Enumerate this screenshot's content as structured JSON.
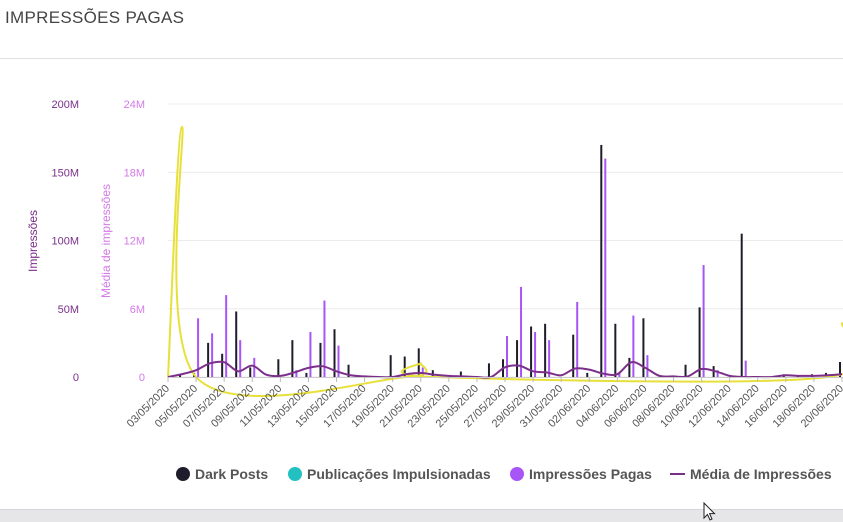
{
  "header": {
    "title": "IMPRESSÕES PAGAS"
  },
  "colors": {
    "dark_posts": "#1f1d2b",
    "publicacoes": "#22c0c0",
    "impressoes": "#a855f7",
    "media": "#7b2f8a",
    "spline": "#e8e03a",
    "axis_left": "#7b2f8a",
    "axis_right": "#d57ae8"
  },
  "chart_data": {
    "type": "bar",
    "ylabel_left": "Impressões",
    "ylabel_right": "Média de impressões",
    "ylim_left": [
      0,
      200000000
    ],
    "ylim_right": [
      0,
      24000000
    ],
    "left_ticks": [
      "0",
      "50M",
      "100M",
      "150M",
      "200M"
    ],
    "right_ticks": [
      "0",
      "6M",
      "12M",
      "18M",
      "24M"
    ],
    "x_tick_labels": [
      "03/05/2020",
      "05/05/2020",
      "07/05/2020",
      "09/05/2020",
      "11/05/2020",
      "13/05/2020",
      "15/05/2020",
      "17/05/2020",
      "19/05/2020",
      "21/05/2020",
      "23/05/2020",
      "25/05/2020",
      "27/05/2020",
      "29/05/2020",
      "31/05/2020",
      "02/06/2020",
      "04/06/2020",
      "06/06/2020",
      "08/06/2020",
      "10/06/2020",
      "12/06/2020",
      "14/06/2020",
      "16/06/2020",
      "18/06/2020",
      "20/06/2020"
    ],
    "x_start": "03/05/2020",
    "x_end": "20/06/2020",
    "series": [
      {
        "name": "Dark Posts",
        "axis": "left",
        "points": [
          {
            "date": "04/05/2020",
            "value": 2000000
          },
          {
            "date": "05/05/2020",
            "value": 3000000
          },
          {
            "date": "06/05/2020",
            "value": 25000000
          },
          {
            "date": "07/05/2020",
            "value": 17000000
          },
          {
            "date": "08/05/2020",
            "value": 48000000
          },
          {
            "date": "09/05/2020",
            "value": 7000000
          },
          {
            "date": "11/05/2020",
            "value": 13000000
          },
          {
            "date": "12/05/2020",
            "value": 27000000
          },
          {
            "date": "13/05/2020",
            "value": 3000000
          },
          {
            "date": "14/05/2020",
            "value": 25000000
          },
          {
            "date": "15/05/2020",
            "value": 35000000
          },
          {
            "date": "16/05/2020",
            "value": 9000000
          },
          {
            "date": "19/05/2020",
            "value": 16000000
          },
          {
            "date": "20/05/2020",
            "value": 15000000
          },
          {
            "date": "21/05/2020",
            "value": 21000000
          },
          {
            "date": "22/05/2020",
            "value": 5000000
          },
          {
            "date": "24/05/2020",
            "value": 4000000
          },
          {
            "date": "26/05/2020",
            "value": 10000000
          },
          {
            "date": "27/05/2020",
            "value": 13000000
          },
          {
            "date": "28/05/2020",
            "value": 27000000
          },
          {
            "date": "29/05/2020",
            "value": 37000000
          },
          {
            "date": "30/05/2020",
            "value": 39000000
          },
          {
            "date": "01/06/2020",
            "value": 31000000
          },
          {
            "date": "02/06/2020",
            "value": 3000000
          },
          {
            "date": "03/06/2020",
            "value": 170000000
          },
          {
            "date": "04/06/2020",
            "value": 39000000
          },
          {
            "date": "05/06/2020",
            "value": 14000000
          },
          {
            "date": "06/06/2020",
            "value": 43000000
          },
          {
            "date": "09/06/2020",
            "value": 9000000
          },
          {
            "date": "10/06/2020",
            "value": 51000000
          },
          {
            "date": "11/06/2020",
            "value": 8000000
          },
          {
            "date": "13/06/2020",
            "value": 105000000
          },
          {
            "date": "16/06/2020",
            "value": 2000000
          },
          {
            "date": "17/06/2020",
            "value": 1000000
          },
          {
            "date": "18/06/2020",
            "value": 2000000
          },
          {
            "date": "19/06/2020",
            "value": 3000000
          },
          {
            "date": "20/06/2020",
            "value": 11000000
          }
        ]
      },
      {
        "name": "Publicações Impulsionadas",
        "axis": "left",
        "points": []
      },
      {
        "name": "Impressões Pagas",
        "axis": "left",
        "points": [
          {
            "date": "05/05/2020",
            "value": 43000000
          },
          {
            "date": "06/05/2020",
            "value": 32000000
          },
          {
            "date": "07/05/2020",
            "value": 60000000
          },
          {
            "date": "08/05/2020",
            "value": 27000000
          },
          {
            "date": "09/05/2020",
            "value": 14000000
          },
          {
            "date": "12/05/2020",
            "value": 5000000
          },
          {
            "date": "13/05/2020",
            "value": 33000000
          },
          {
            "date": "14/05/2020",
            "value": 56000000
          },
          {
            "date": "15/05/2020",
            "value": 23000000
          },
          {
            "date": "20/05/2020",
            "value": 2000000
          },
          {
            "date": "21/05/2020",
            "value": 7000000
          },
          {
            "date": "27/05/2020",
            "value": 30000000
          },
          {
            "date": "28/05/2020",
            "value": 66000000
          },
          {
            "date": "29/05/2020",
            "value": 33000000
          },
          {
            "date": "30/05/2020",
            "value": 27000000
          },
          {
            "date": "01/06/2020",
            "value": 55000000
          },
          {
            "date": "03/06/2020",
            "value": 160000000
          },
          {
            "date": "04/06/2020",
            "value": 3000000
          },
          {
            "date": "05/06/2020",
            "value": 45000000
          },
          {
            "date": "06/06/2020",
            "value": 16000000
          },
          {
            "date": "10/06/2020",
            "value": 82000000
          },
          {
            "date": "11/06/2020",
            "value": 5000000
          },
          {
            "date": "13/06/2020",
            "value": 12000000
          }
        ]
      },
      {
        "name": "Média de Impressões",
        "axis": "right",
        "points": [
          {
            "date": "03/05/2020",
            "value": 0
          },
          {
            "date": "04/05/2020",
            "value": 250000
          },
          {
            "date": "05/05/2020",
            "value": 600000
          },
          {
            "date": "06/05/2020",
            "value": 1200000
          },
          {
            "date": "07/05/2020",
            "value": 1300000
          },
          {
            "date": "08/05/2020",
            "value": 500000
          },
          {
            "date": "09/05/2020",
            "value": 1000000
          },
          {
            "date": "10/05/2020",
            "value": 200000
          },
          {
            "date": "11/05/2020",
            "value": 100000
          },
          {
            "date": "12/05/2020",
            "value": 400000
          },
          {
            "date": "13/05/2020",
            "value": 800000
          },
          {
            "date": "14/05/2020",
            "value": 950000
          },
          {
            "date": "15/05/2020",
            "value": 500000
          },
          {
            "date": "16/05/2020",
            "value": 150000
          },
          {
            "date": "17/05/2020",
            "value": 50000
          },
          {
            "date": "18/05/2020",
            "value": 0
          },
          {
            "date": "19/05/2020",
            "value": 0
          },
          {
            "date": "20/05/2020",
            "value": 250000
          },
          {
            "date": "21/05/2020",
            "value": 350000
          },
          {
            "date": "22/05/2020",
            "value": 200000
          },
          {
            "date": "23/05/2020",
            "value": 100000
          },
          {
            "date": "24/05/2020",
            "value": 50000
          },
          {
            "date": "25/05/2020",
            "value": 0
          },
          {
            "date": "26/05/2020",
            "value": 0
          },
          {
            "date": "27/05/2020",
            "value": 850000
          },
          {
            "date": "28/05/2020",
            "value": 1000000
          },
          {
            "date": "29/05/2020",
            "value": 500000
          },
          {
            "date": "30/05/2020",
            "value": 400000
          },
          {
            "date": "31/05/2020",
            "value": 150000
          },
          {
            "date": "01/06/2020",
            "value": 750000
          },
          {
            "date": "02/06/2020",
            "value": 650000
          },
          {
            "date": "03/06/2020",
            "value": 300000
          },
          {
            "date": "04/06/2020",
            "value": 250000
          },
          {
            "date": "05/06/2020",
            "value": 1300000
          },
          {
            "date": "06/06/2020",
            "value": 800000
          },
          {
            "date": "07/06/2020",
            "value": 100000
          },
          {
            "date": "08/06/2020",
            "value": 50000
          },
          {
            "date": "09/06/2020",
            "value": 50000
          },
          {
            "date": "10/06/2020",
            "value": 700000
          },
          {
            "date": "11/06/2020",
            "value": 500000
          },
          {
            "date": "12/06/2020",
            "value": 100000
          },
          {
            "date": "13/06/2020",
            "value": 0
          },
          {
            "date": "14/06/2020",
            "value": 0
          },
          {
            "date": "15/06/2020",
            "value": 0
          },
          {
            "date": "16/06/2020",
            "value": 150000
          },
          {
            "date": "17/06/2020",
            "value": 100000
          },
          {
            "date": "18/06/2020",
            "value": 100000
          },
          {
            "date": "19/06/2020",
            "value": 150000
          },
          {
            "date": "20/06/2020",
            "value": 250000
          }
        ]
      }
    ],
    "unlabeled_yellow_line": {
      "axis": "right",
      "points": [
        {
          "date": "03/05/2020",
          "value": 0
        },
        {
          "date": "04/05/2020",
          "value": 22000000
        },
        {
          "date": "05/05/2020",
          "value": 0
        },
        {
          "date": "20/05/2020",
          "value": 0
        },
        {
          "date": "21/05/2020",
          "value": 1200000
        },
        {
          "date": "22/05/2020",
          "value": 0
        },
        {
          "date": "19/06/2020",
          "value": 0
        },
        {
          "date": "20/06/2020",
          "value": 4800000
        }
      ]
    },
    "legend": {
      "position": "bottom",
      "items": [
        {
          "label": "Dark Posts",
          "color": "#1f1d2b",
          "shape": "circle"
        },
        {
          "label": "Publicações Impulsionadas",
          "color": "#22c0c0",
          "shape": "circle"
        },
        {
          "label": "Impressões Pagas",
          "color": "#a855f7",
          "shape": "circle"
        },
        {
          "label": "Média de Impressões",
          "color": "#7b2f8a",
          "shape": "line"
        }
      ]
    },
    "grid": "horizontal"
  }
}
